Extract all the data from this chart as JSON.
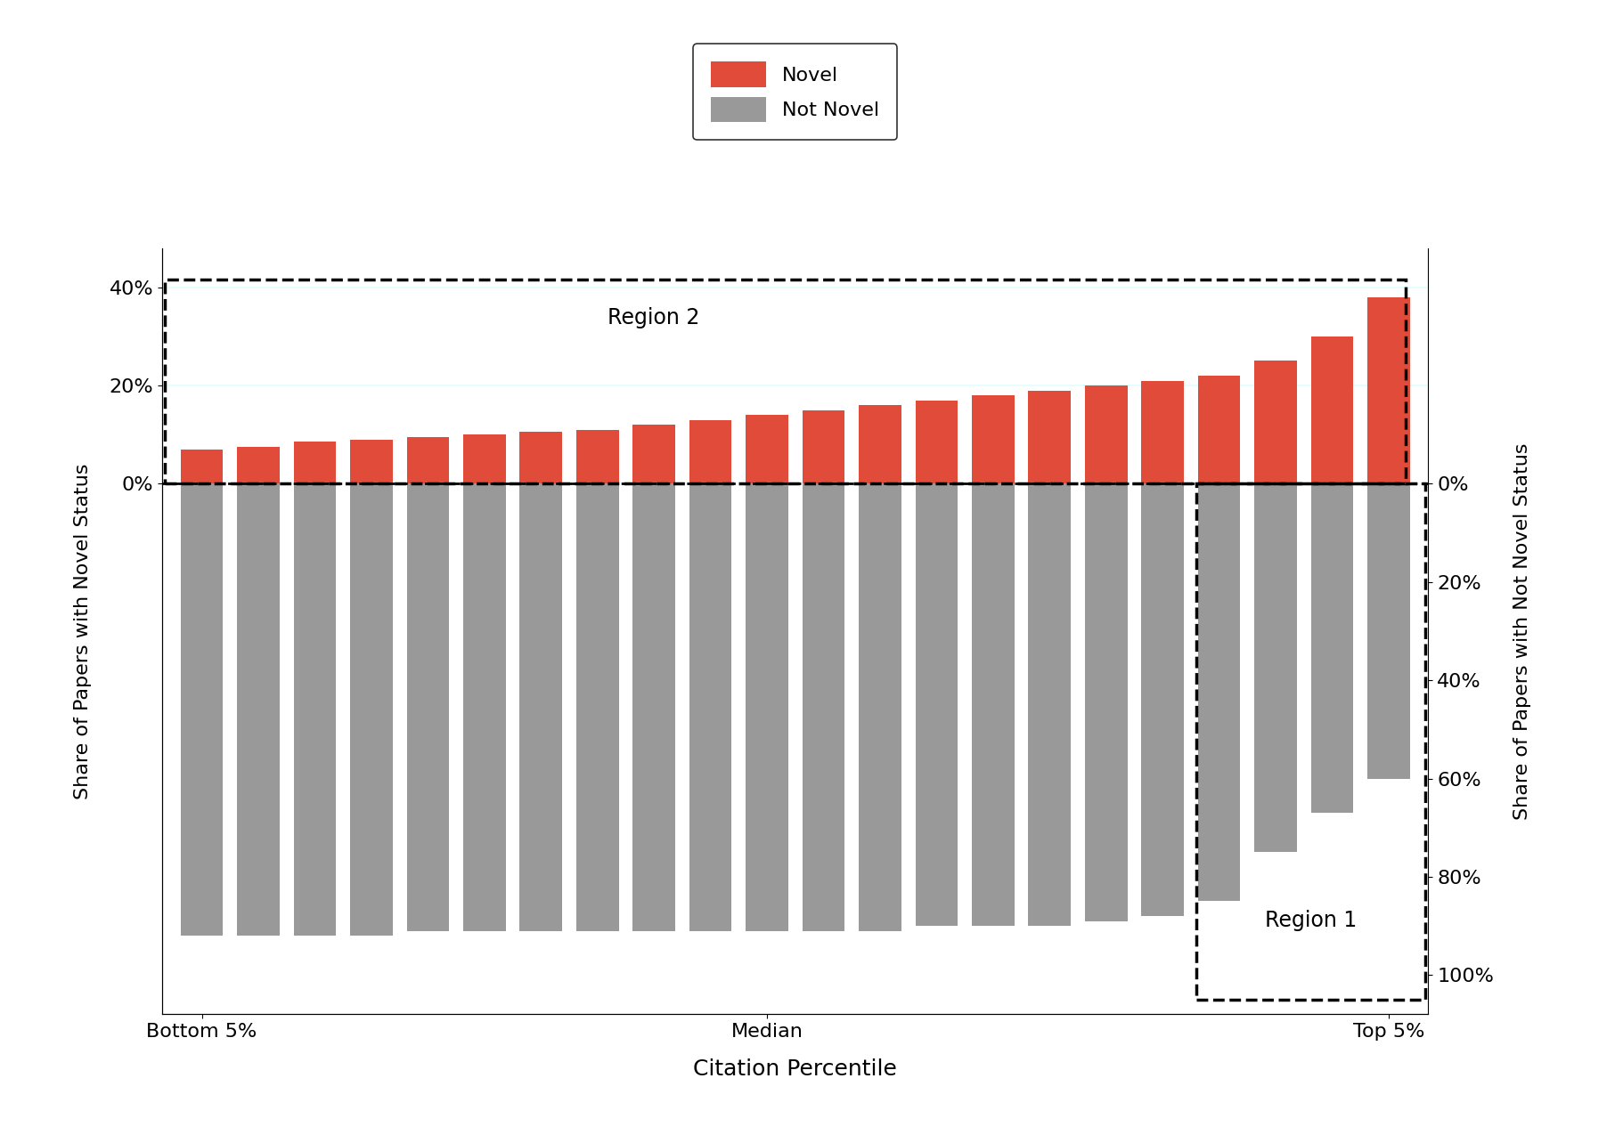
{
  "novel_values": [
    7,
    7.5,
    8.5,
    9,
    9.5,
    10,
    10.5,
    11,
    12,
    13,
    14,
    15,
    16,
    17,
    18,
    19,
    20,
    21,
    22,
    25,
    30,
    38
  ],
  "not_novel_values": [
    -92,
    -92,
    -92,
    -92,
    -91,
    -91,
    -91,
    -91,
    -91,
    -91,
    -91,
    -91,
    -91,
    -90,
    -90,
    -90,
    -89,
    -88,
    -85,
    -75,
    -67,
    -60
  ],
  "novel_color": "#E04B3A",
  "not_novel_color": "#999999",
  "xlabel": "Citation Percentile",
  "ylabel_left": "Share of Papers with Novel Status",
  "ylabel_right": "Share of Papers with Not Novel Status",
  "xtick_labels": [
    "Bottom 5%",
    "Median",
    "Top 5%"
  ],
  "region1_label": "Region 1",
  "region2_label": "Region 2",
  "legend_novel": "Novel",
  "legend_not_novel": "Not Novel",
  "n_bars": 22,
  "background_color": "#ffffff",
  "ylim": [
    -108,
    48
  ]
}
